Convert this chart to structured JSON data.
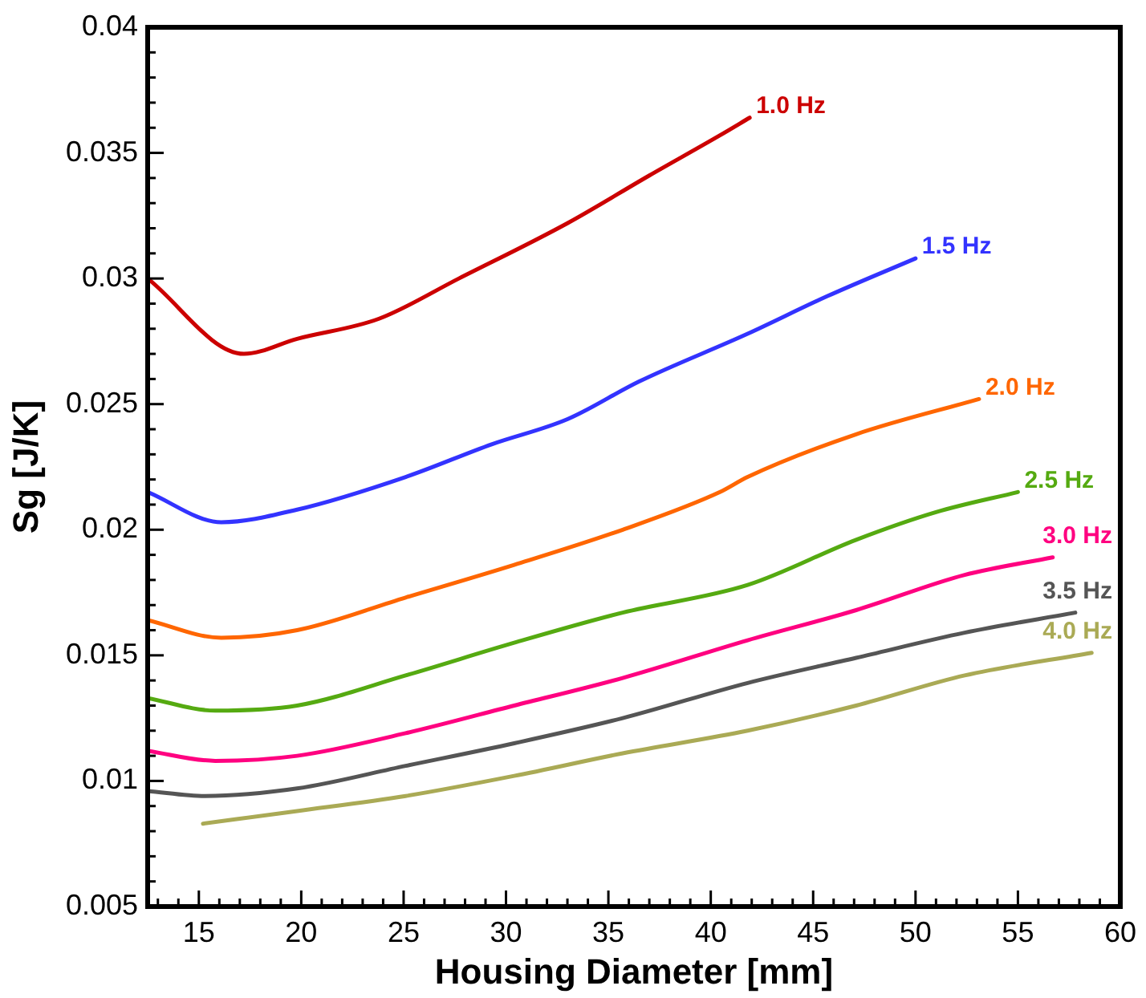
{
  "chart_data": {
    "type": "line",
    "xlabel": "Housing Diameter [mm]",
    "ylabel": "Sg [J/K]",
    "xlim": [
      12.5,
      60
    ],
    "ylim": [
      0.005,
      0.04
    ],
    "xticks": [
      {
        "value": 13,
        "label": null
      },
      {
        "value": 14,
        "label": null
      },
      15,
      {
        "value": 16,
        "label": null
      },
      {
        "value": 17,
        "label": null
      },
      {
        "value": 18,
        "label": null
      },
      {
        "value": 19,
        "label": null
      },
      20,
      {
        "value": 21,
        "label": null
      },
      {
        "value": 22,
        "label": null
      },
      {
        "value": 23,
        "label": null
      },
      {
        "value": 24,
        "label": null
      },
      25,
      {
        "value": 26,
        "label": null
      },
      {
        "value": 27,
        "label": null
      },
      {
        "value": 28,
        "label": null
      },
      {
        "value": 29,
        "label": null
      },
      30,
      {
        "value": 31,
        "label": null
      },
      {
        "value": 32,
        "label": null
      },
      {
        "value": 33,
        "label": null
      },
      {
        "value": 34,
        "label": null
      },
      35,
      {
        "value": 36,
        "label": null
      },
      {
        "value": 37,
        "label": null
      },
      {
        "value": 38,
        "label": null
      },
      {
        "value": 39,
        "label": null
      },
      40,
      {
        "value": 41,
        "label": null
      },
      {
        "value": 42,
        "label": null
      },
      {
        "value": 43,
        "label": null
      },
      {
        "value": 44,
        "label": null
      },
      45,
      {
        "value": 46,
        "label": null
      },
      {
        "value": 47,
        "label": null
      },
      {
        "value": 48,
        "label": null
      },
      {
        "value": 49,
        "label": null
      },
      50,
      {
        "value": 51,
        "label": null
      },
      {
        "value": 52,
        "label": null
      },
      {
        "value": 53,
        "label": null
      },
      {
        "value": 54,
        "label": null
      },
      55,
      {
        "value": 56,
        "label": null
      },
      {
        "value": 57,
        "label": null
      },
      {
        "value": 58,
        "label": null
      },
      {
        "value": 59,
        "label": null
      },
      60
    ],
    "yticks": [
      0.005,
      {
        "value": 0.006,
        "label": null
      },
      {
        "value": 0.007,
        "label": null
      },
      {
        "value": 0.008,
        "label": null
      },
      {
        "value": 0.009,
        "label": null
      },
      0.01,
      {
        "value": 0.011,
        "label": null
      },
      {
        "value": 0.012,
        "label": null
      },
      {
        "value": 0.013,
        "label": null
      },
      {
        "value": 0.014,
        "label": null
      },
      0.015,
      {
        "value": 0.016,
        "label": null
      },
      {
        "value": 0.017,
        "label": null
      },
      {
        "value": 0.018,
        "label": null
      },
      {
        "value": 0.019,
        "label": null
      },
      0.02,
      {
        "value": 0.021,
        "label": null
      },
      {
        "value": 0.022,
        "label": null
      },
      {
        "value": 0.023,
        "label": null
      },
      {
        "value": 0.024,
        "label": null
      },
      0.025,
      {
        "value": 0.026,
        "label": null
      },
      {
        "value": 0.027,
        "label": null
      },
      {
        "value": 0.028,
        "label": null
      },
      {
        "value": 0.029,
        "label": null
      },
      0.03,
      {
        "value": 0.031,
        "label": null
      },
      {
        "value": 0.032,
        "label": null
      },
      {
        "value": 0.033,
        "label": null
      },
      {
        "value": 0.034,
        "label": null
      },
      0.035,
      {
        "value": 0.036,
        "label": null
      },
      {
        "value": 0.037,
        "label": null
      },
      {
        "value": 0.038,
        "label": null
      },
      {
        "value": 0.039,
        "label": null
      },
      0.04
    ],
    "grid": false,
    "legend": false,
    "marker": "none",
    "line_style": "solid",
    "series": [
      {
        "name": "1.0 Hz",
        "color": "#cc0000",
        "x": [
          12.5,
          17.2,
          19.8,
          23.8,
          27.7,
          33.0,
          37.0,
          40.45,
          41.9
        ],
        "values": [
          0.03,
          0.027,
          0.0276,
          0.0284,
          0.03,
          0.0322,
          0.0341,
          0.0357,
          0.0364
        ]
      },
      {
        "name": "1.5 Hz",
        "color": "#3333ff",
        "x": [
          12.5,
          16.1,
          19.8,
          25.1,
          29.3,
          33.0,
          36.5,
          41.8,
          45.7,
          50.0
        ],
        "values": [
          0.0215,
          0.0203,
          0.0208,
          0.0221,
          0.0234,
          0.0244,
          0.0259,
          0.0278,
          0.0293,
          0.0308
        ]
      },
      {
        "name": "2.0 Hz",
        "color": "#ff6600",
        "x": [
          12.5,
          16.1,
          19.8,
          25.1,
          30.4,
          35.7,
          40.45,
          41.8,
          47.1,
          53.1
        ],
        "values": [
          0.0164,
          0.0157,
          0.016,
          0.0173,
          0.0186,
          0.02,
          0.0215,
          0.0221,
          0.0238,
          0.0252
        ]
      },
      {
        "name": "2.5 Hz",
        "color": "#55aa11",
        "x": [
          12.5,
          15.8,
          19.8,
          25.1,
          30.4,
          35.7,
          41.8,
          47.1,
          51.0,
          55.0
        ],
        "values": [
          0.0133,
          0.0128,
          0.013,
          0.0142,
          0.0155,
          0.0167,
          0.0178,
          0.0196,
          0.0207,
          0.0215
        ]
      },
      {
        "name": "3.0 Hz",
        "color": "#ff0080",
        "x": [
          12.5,
          15.8,
          19.8,
          25.1,
          30.4,
          35.7,
          41.8,
          47.1,
          52.4,
          56.7
        ],
        "values": [
          0.0112,
          0.0108,
          0.011,
          0.0119,
          0.013,
          0.0141,
          0.0156,
          0.0168,
          0.0182,
          0.0189
        ]
      },
      {
        "name": "3.5 Hz",
        "color": "#555555",
        "x": [
          12.5,
          15.3,
          19.8,
          25.1,
          30.4,
          35.7,
          41.8,
          47.1,
          52.4,
          57.8
        ],
        "values": [
          0.0096,
          0.0094,
          0.0097,
          0.0106,
          0.0115,
          0.0125,
          0.0139,
          0.0149,
          0.0159,
          0.0167
        ]
      },
      {
        "name": "4.0 Hz",
        "color": "#aaaa55",
        "x": [
          15.2,
          19.8,
          25.1,
          30.4,
          35.7,
          41.8,
          47.1,
          52.4,
          58.6
        ],
        "values": [
          0.0083,
          0.0088,
          0.0094,
          0.0102,
          0.0111,
          0.012,
          0.013,
          0.0142,
          0.0151
        ]
      }
    ]
  }
}
